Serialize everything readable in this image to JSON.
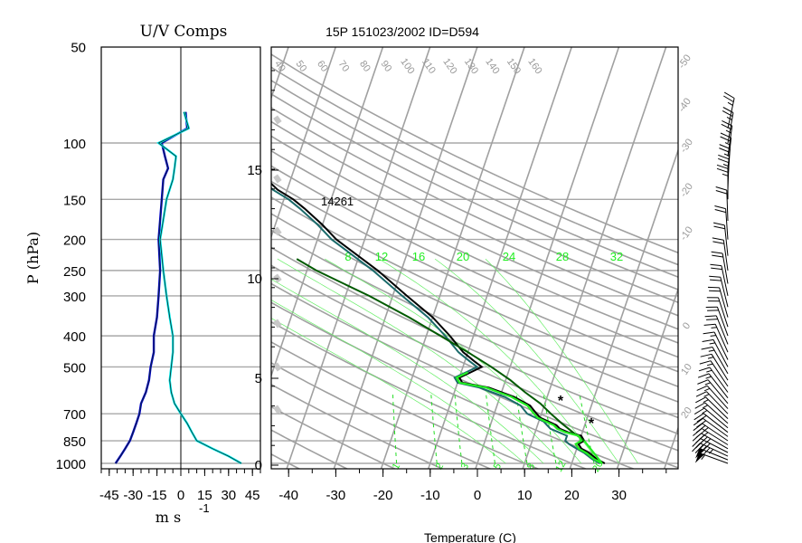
{
  "chart_data": [
    {
      "type": "line",
      "title": "U/V Comps",
      "ylabel": "P (hPa)",
      "xlabel": "m s",
      "xlabel_exponent": "-1",
      "xlim": [
        -50,
        50
      ],
      "xticks": [
        "-45",
        "-30",
        "-15",
        "0",
        "15",
        "30",
        "45"
      ],
      "yticks": [
        "50",
        "100",
        "150",
        "200",
        "250",
        "300",
        "400",
        "500",
        "700",
        "850",
        "1000"
      ],
      "series": [
        {
          "color": "#0000cc",
          "pressure": [
            1000,
            950,
            900,
            850,
            800,
            750,
            700,
            650,
            600,
            550,
            500,
            450,
            400,
            350,
            300,
            250,
            200,
            150,
            130,
            120,
            110,
            100,
            90,
            80
          ],
          "values": [
            -41,
            -38,
            -35,
            -32,
            -30,
            -28,
            -26,
            -25,
            -22,
            -20,
            -19,
            -17,
            -17,
            -15,
            -14,
            -13,
            -14,
            -12,
            -11,
            -8,
            -10,
            -12,
            4,
            3
          ]
        },
        {
          "color": "#00eeee",
          "pressure": [
            1000,
            950,
            900,
            850,
            800,
            750,
            700,
            650,
            600,
            550,
            500,
            450,
            400,
            350,
            300,
            250,
            200,
            150,
            130,
            120,
            110,
            100,
            90,
            80
          ],
          "values": [
            38,
            30,
            20,
            10,
            7,
            4,
            0,
            -4,
            -6,
            -7,
            -6,
            -5,
            -5,
            -7,
            -9,
            -11,
            -13,
            -9,
            -5,
            -4,
            -3,
            -14,
            5,
            2
          ]
        }
      ]
    },
    {
      "type": "line",
      "title": "15P 151023/2002 ID=D594",
      "xlabel": "Temperature (C)",
      "xticks": [
        "-40",
        "-30",
        "-20",
        "-10",
        "0",
        "10",
        "20",
        "30"
      ],
      "height_ticks": [
        "0",
        "5",
        "10",
        "15"
      ],
      "annotation": "14261",
      "isotherm_labels": [
        "-50",
        "-40",
        "-30",
        "-20",
        "-10",
        "0",
        "10",
        "20"
      ],
      "adiabat_labels": [
        "40",
        "50",
        "60",
        "70",
        "80",
        "90",
        "100",
        "110",
        "120",
        "130",
        "140",
        "150",
        "160"
      ],
      "moist_adiabat_labels": [
        "8",
        "12",
        "16",
        "20",
        "24",
        "28",
        "32"
      ],
      "mixing_ratio_labels": [
        "1",
        "2",
        "3",
        "5",
        "8",
        "12",
        "20"
      ],
      "series": [
        {
          "name": "Temperature",
          "color": "#000000",
          "pressure": [
            1000,
            970,
            930,
            900,
            870,
            850,
            820,
            800,
            780,
            760,
            740,
            720,
            700,
            680,
            660,
            640,
            620,
            600,
            580,
            560,
            540,
            520,
            500,
            480,
            450,
            400,
            350,
            300,
            250,
            200,
            180,
            160,
            150,
            140,
            130,
            120,
            110,
            105,
            100,
            95,
            90,
            85
          ],
          "values": [
            27,
            25,
            23,
            21,
            20,
            21,
            20,
            17,
            15,
            14,
            12,
            10,
            9,
            8,
            7,
            5,
            3,
            0,
            -3,
            -9,
            -10,
            -8,
            -6,
            -8,
            -11,
            -15,
            -20,
            -27,
            -35,
            -46,
            -50,
            -55,
            -58,
            -62,
            -65,
            -70,
            -74,
            -76,
            -78,
            -77,
            -75,
            -73
          ]
        },
        {
          "name": "Dewpoint",
          "color": "#1a6a6a",
          "pressure": [
            1000,
            970,
            930,
            900,
            870,
            850,
            820,
            800,
            780,
            760,
            740,
            720,
            700,
            680,
            660,
            640,
            620,
            600,
            580,
            560,
            540,
            520,
            500,
            480,
            450,
            400,
            350,
            300,
            250,
            200,
            180,
            160,
            150,
            140,
            130,
            120,
            110,
            105,
            100
          ],
          "values": [
            26,
            24,
            22,
            20,
            18,
            17,
            17,
            15,
            13,
            12,
            11,
            9,
            7,
            6,
            5,
            3,
            1,
            -2,
            -5,
            -10,
            -11,
            -9,
            -7,
            -9,
            -12,
            -16,
            -21,
            -28,
            -36,
            -47,
            -51,
            -56,
            -59,
            -63,
            -66,
            -71,
            -75,
            -77,
            -78
          ]
        },
        {
          "name": "Parcel",
          "color": "#005a00",
          "pressure": [
            850,
            800,
            750,
            700,
            650,
            600,
            550,
            500,
            450,
            400,
            350,
            300,
            250,
            230
          ],
          "values": [
            21,
            18,
            15,
            12,
            9,
            5,
            1,
            -4,
            -10,
            -17,
            -25,
            -35,
            -48,
            -53
          ]
        }
      ]
    }
  ],
  "wind_barbs": {
    "color": "#000000",
    "pressure": [
      1000,
      975,
      950,
      925,
      900,
      875,
      850,
      825,
      800,
      775,
      750,
      725,
      700,
      675,
      650,
      625,
      600,
      575,
      550,
      525,
      500,
      475,
      450,
      425,
      400,
      375,
      350,
      325,
      300,
      275,
      250,
      225,
      200,
      175,
      150,
      140,
      130,
      120,
      110,
      100,
      90
    ],
    "direction": [
      250,
      248,
      245,
      243,
      240,
      238,
      236,
      234,
      232,
      230,
      228,
      226,
      224,
      222,
      220,
      218,
      216,
      214,
      212,
      210,
      208,
      206,
      204,
      202,
      200,
      198,
      196,
      194,
      192,
      190,
      188,
      186,
      184,
      182,
      180,
      178,
      176,
      174,
      172,
      170,
      168
    ],
    "speed_kt": [
      55,
      50,
      45,
      40,
      35,
      30,
      25,
      22,
      20,
      18,
      17,
      16,
      15,
      15,
      15,
      16,
      16,
      17,
      17,
      18,
      18,
      19,
      19,
      20,
      20,
      21,
      21,
      22,
      22,
      22,
      23,
      23,
      24,
      24,
      25,
      25,
      25,
      25,
      25,
      25,
      25
    ]
  }
}
